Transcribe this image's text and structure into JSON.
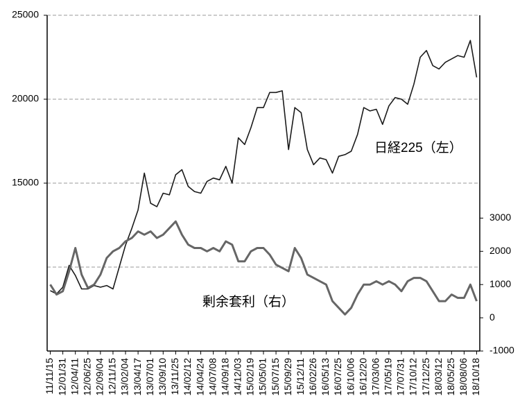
{
  "chart_data": {
    "type": "line",
    "categories": [
      "11/11/15",
      null,
      "12/01/31",
      null,
      "12/04/11",
      null,
      "12/06/25",
      null,
      "12/09/04",
      null,
      "12/11/15",
      null,
      "13/02/04",
      null,
      "13/04/17",
      null,
      "13/07/01",
      null,
      "13/09/10",
      null,
      "13/11/25",
      null,
      "14/02/12",
      null,
      "14/04/24",
      null,
      "14/07/08",
      null,
      "14/09/18",
      null,
      "14/12/03",
      null,
      "15/02/19",
      null,
      "15/05/01",
      null,
      "15/07/15",
      null,
      "15/09/29",
      null,
      "15/12/11",
      null,
      "16/02/26",
      null,
      "16/05/13",
      null,
      "16/07/25",
      null,
      "16/10/06",
      null,
      "16/12/20",
      null,
      "17/03/06",
      null,
      "17/05/19",
      null,
      "17/07/31",
      null,
      "17/10/12",
      null,
      "17/12/25",
      null,
      "18/03/12",
      null,
      "18/05/25",
      null,
      "18/08/06",
      null,
      "18/10/18"
    ],
    "series": [
      {
        "name": "日経225（左）",
        "color": "#1a1a1a",
        "axis": "y",
        "values": [
          8600,
          8400,
          8800,
          10100,
          9500,
          8700,
          8700,
          8900,
          8800,
          8900,
          8700,
          10000,
          11300,
          12300,
          13400,
          15600,
          13800,
          13600,
          14400,
          14300,
          15500,
          15800,
          14800,
          14500,
          14400,
          15100,
          15300,
          15200,
          16000,
          15000,
          17700,
          17300,
          18300,
          19500,
          19500,
          20400,
          20400,
          20500,
          17000,
          19500,
          19200,
          17000,
          16100,
          16500,
          16400,
          15600,
          16600,
          16700,
          16900,
          17900,
          19500,
          19300,
          19400,
          18500,
          19600,
          20100,
          20000,
          19700,
          20900,
          22500,
          22900,
          22000,
          21800,
          22200,
          22400,
          22600,
          22500,
          23500,
          21300
        ]
      },
      {
        "name": "剰余套利（右）",
        "color": "#666666",
        "axis": "y2",
        "values": [
          1000,
          700,
          800,
          1400,
          2100,
          1300,
          900,
          1000,
          1300,
          1800,
          2000,
          2100,
          2300,
          2400,
          2600,
          2500,
          2600,
          2400,
          2500,
          2700,
          2900,
          2500,
          2200,
          2100,
          2100,
          2000,
          2100,
          2000,
          2300,
          2200,
          1700,
          1700,
          2000,
          2100,
          2100,
          1900,
          1600,
          1500,
          1400,
          2100,
          1800,
          1300,
          1200,
          1100,
          1000,
          500,
          300,
          100,
          300,
          700,
          1000,
          1000,
          1100,
          1000,
          1100,
          1000,
          800,
          1100,
          1200,
          1200,
          1100,
          800,
          500,
          500,
          700,
          600,
          600,
          1000,
          500
        ]
      }
    ],
    "ylim": [
      5000,
      25000
    ],
    "yticks": [
      15000,
      20000,
      25000
    ],
    "gridlines": [
      10000,
      15000,
      20000,
      25000
    ],
    "y2lim": [
      -1000,
      9104
    ],
    "y2ticks": [
      -1000,
      0,
      1000,
      2000,
      3000
    ]
  }
}
